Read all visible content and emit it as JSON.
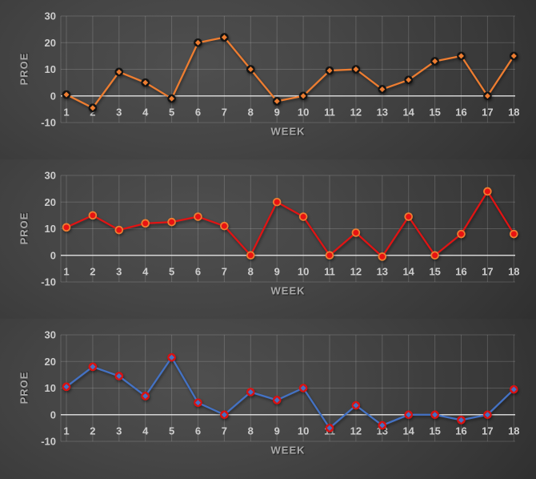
{
  "page": {
    "background": "#2b2b2b",
    "description": "Three stacked dark-themed line charts of PROE by WEEK"
  },
  "style": {
    "grid_color": "rgba(255,255,255,0.16)",
    "zero_axis_color": "rgba(238,238,238,0.85)",
    "tick_label_color": "#cdcdcd",
    "axis_title_color": "#a9a9a9",
    "series_colors": [
      "#ED7D31",
      "#E01414",
      "#4472C4"
    ]
  },
  "chart_data": [
    {
      "type": "line",
      "title": "",
      "xlabel": "WEEK",
      "ylabel": "PROE",
      "x": [
        1,
        2,
        3,
        4,
        5,
        6,
        7,
        8,
        9,
        10,
        11,
        12,
        13,
        14,
        15,
        16,
        17,
        18
      ],
      "values": [
        0.5,
        -4.5,
        9,
        5,
        -1,
        20,
        22,
        10,
        -2,
        0,
        9.5,
        10,
        2.5,
        6,
        13,
        15,
        0,
        15
      ],
      "ylim": [
        -10,
        30
      ],
      "yticks": [
        30,
        20,
        10,
        0,
        -10
      ],
      "grid": true,
      "legend": "none",
      "line_color": "#ED7D31",
      "marker": {
        "shape": "diamond",
        "fill": "#ED7D31",
        "ring": "#131313"
      }
    },
    {
      "type": "line",
      "title": "",
      "xlabel": "WEEK",
      "ylabel": "PROE",
      "x": [
        1,
        2,
        3,
        4,
        5,
        6,
        7,
        8,
        9,
        10,
        11,
        12,
        13,
        14,
        15,
        16,
        17,
        18
      ],
      "values": [
        10.5,
        15,
        9.5,
        12,
        12.5,
        14.5,
        11,
        0,
        20,
        14.5,
        0,
        8.5,
        -0.5,
        14.5,
        0,
        8,
        24,
        8
      ],
      "ylim": [
        -10,
        30
      ],
      "yticks": [
        30,
        20,
        10,
        0,
        -10
      ],
      "grid": true,
      "legend": "none",
      "line_color": "#E01414",
      "marker": {
        "shape": "circle",
        "fill": "#E81212",
        "ring": "#ED7D31"
      }
    },
    {
      "type": "line",
      "title": "",
      "xlabel": "WEEK",
      "ylabel": "PROE",
      "x": [
        1,
        2,
        3,
        4,
        5,
        6,
        7,
        8,
        9,
        10,
        11,
        12,
        13,
        14,
        15,
        16,
        17,
        18
      ],
      "values": [
        10.5,
        18,
        14.5,
        7,
        21.5,
        4.5,
        0,
        8.5,
        5.5,
        10,
        -5,
        3.5,
        -4,
        0,
        0,
        -2,
        0,
        9.5
      ],
      "ylim": [
        -10,
        30
      ],
      "yticks": [
        30,
        20,
        10,
        0,
        -10
      ],
      "grid": true,
      "legend": "none",
      "line_color": "#4472C4",
      "marker": {
        "shape": "diamond",
        "fill": "#4472C4",
        "ring": "#DA1111"
      }
    }
  ]
}
